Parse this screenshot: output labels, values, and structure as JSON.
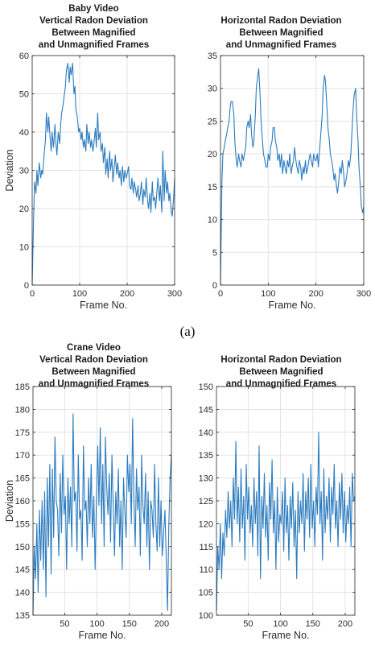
{
  "caption": "(a)",
  "chart_data": [
    {
      "type": "line",
      "title_lines": [
        "Baby Video",
        "Vertical Radon Deviation",
        "Between Magnified",
        "and Unmagnified Frames"
      ],
      "xlabel": "Frame No.",
      "ylabel": "Deviation",
      "xlim": [
        0,
        300
      ],
      "ylim": [
        0,
        60
      ],
      "xticks": [
        0,
        100,
        200,
        300
      ],
      "yticks": [
        0,
        10,
        20,
        30,
        40,
        50,
        60
      ],
      "grid": true,
      "color": "#2b7bbf",
      "series": [
        {
          "name": "",
          "x": [
            0,
            3,
            5,
            8,
            10,
            12,
            15,
            18,
            20,
            22,
            25,
            28,
            30,
            33,
            35,
            38,
            40,
            42,
            45,
            48,
            50,
            52,
            55,
            58,
            60,
            62,
            65,
            68,
            70,
            72,
            75,
            78,
            80,
            82,
            85,
            88,
            90,
            92,
            95,
            98,
            100,
            103,
            105,
            108,
            110,
            113,
            115,
            118,
            120,
            123,
            125,
            128,
            130,
            133,
            135,
            138,
            140,
            143,
            145,
            148,
            150,
            153,
            155,
            158,
            160,
            163,
            165,
            168,
            170,
            173,
            175,
            178,
            180,
            183,
            185,
            188,
            190,
            193,
            195,
            198,
            200,
            203,
            205,
            208,
            210,
            213,
            215,
            218,
            220,
            223,
            225,
            228,
            230,
            233,
            235,
            238,
            240,
            243,
            245,
            248,
            250,
            253,
            255,
            258,
            260,
            263,
            265,
            268,
            270,
            273,
            275,
            278,
            280,
            283,
            285,
            288,
            290,
            293,
            295,
            298,
            300
          ],
          "y": [
            0,
            18,
            27,
            24,
            30,
            26,
            32,
            28,
            30,
            29,
            34,
            38,
            45,
            40,
            44,
            38,
            35,
            40,
            36,
            42,
            37,
            34,
            40,
            37,
            42,
            45,
            47,
            50,
            52,
            56,
            58,
            53,
            57,
            55,
            58,
            50,
            52,
            46,
            44,
            40,
            41,
            38,
            40,
            36,
            38,
            35,
            42,
            37,
            40,
            36,
            38,
            35,
            37,
            41,
            36,
            45,
            38,
            40,
            35,
            37,
            32,
            36,
            29,
            33,
            28,
            35,
            30,
            33,
            27,
            31,
            34,
            29,
            32,
            28,
            30,
            26,
            31,
            27,
            30,
            28,
            29,
            31,
            26,
            25,
            28,
            24,
            27,
            25,
            23,
            26,
            22,
            24,
            27,
            21,
            25,
            23,
            28,
            22,
            20,
            24,
            19,
            27,
            22,
            23,
            20,
            25,
            28,
            22,
            26,
            19,
            35,
            22,
            30,
            24,
            27,
            22,
            24,
            19,
            18,
            23,
            28
          ]
        }
      ]
    },
    {
      "type": "line",
      "title_lines": [
        "Horizontal Radon Deviation",
        "Between Magnified",
        "and Unmagnified Frames"
      ],
      "xlabel": "Frame No.",
      "ylabel": "",
      "xlim": [
        0,
        300
      ],
      "ylim": [
        0,
        35
      ],
      "xticks": [
        0,
        100,
        200,
        300
      ],
      "yticks": [
        0,
        5,
        10,
        15,
        20,
        25,
        30,
        35
      ],
      "grid": true,
      "color": "#2b7bbf",
      "series": [
        {
          "name": "",
          "x": [
            0,
            3,
            5,
            8,
            10,
            13,
            15,
            18,
            20,
            22,
            25,
            28,
            30,
            33,
            35,
            38,
            40,
            43,
            45,
            48,
            50,
            53,
            55,
            58,
            60,
            63,
            65,
            68,
            70,
            73,
            75,
            78,
            80,
            83,
            85,
            88,
            90,
            93,
            95,
            98,
            100,
            103,
            105,
            108,
            110,
            113,
            115,
            118,
            120,
            123,
            125,
            128,
            130,
            133,
            135,
            138,
            140,
            143,
            145,
            148,
            150,
            153,
            155,
            158,
            160,
            163,
            165,
            168,
            170,
            173,
            175,
            178,
            180,
            183,
            185,
            188,
            190,
            193,
            195,
            198,
            200,
            203,
            205,
            208,
            210,
            213,
            215,
            218,
            220,
            223,
            225,
            228,
            230,
            233,
            235,
            238,
            240,
            243,
            245,
            248,
            250,
            253,
            255,
            258,
            260,
            263,
            265,
            268,
            270,
            273,
            275,
            278,
            280,
            283,
            285,
            288,
            290,
            293,
            295,
            298,
            300
          ],
          "y": [
            0,
            16,
            20,
            21,
            22,
            23,
            24,
            25,
            27,
            28,
            28,
            26,
            22,
            19,
            18,
            20,
            19,
            18,
            20,
            19,
            20,
            21,
            24,
            25,
            24,
            26,
            23,
            21,
            22,
            26,
            30,
            32,
            33,
            29,
            25,
            22,
            20,
            19,
            18,
            18,
            20,
            19,
            21,
            22,
            24,
            24,
            22,
            21,
            19,
            20,
            18,
            20,
            17,
            19,
            18,
            17,
            19,
            18,
            20,
            17,
            18,
            19,
            21,
            19,
            18,
            17,
            19,
            18,
            16,
            18,
            17,
            19,
            17,
            18,
            19,
            20,
            19,
            18,
            20,
            19,
            19,
            20,
            18,
            21,
            23,
            26,
            30,
            32,
            31,
            27,
            24,
            22,
            20,
            19,
            18,
            16,
            17,
            15,
            14,
            16,
            18,
            17,
            19,
            17,
            15,
            16,
            17,
            19,
            18,
            20,
            23,
            27,
            29,
            30,
            26,
            22,
            18,
            15,
            12,
            11,
            12
          ]
        }
      ]
    },
    {
      "type": "line",
      "title_lines": [
        "Crane Video",
        "Vertical Radon Deviation",
        "Between Magnified",
        "and Unmagnified Frames"
      ],
      "xlabel": "Frame No.",
      "ylabel": "Deviation",
      "xlim": [
        1,
        215
      ],
      "ylim": [
        135,
        185
      ],
      "xticks": [
        50,
        100,
        150,
        200
      ],
      "yticks": [
        135,
        140,
        145,
        150,
        155,
        160,
        165,
        170,
        175,
        180,
        185
      ],
      "grid": true,
      "color": "#2b7bbf",
      "series": [
        {
          "name": "",
          "x": [
            1,
            3,
            5,
            7,
            9,
            11,
            13,
            15,
            17,
            19,
            21,
            23,
            25,
            27,
            29,
            31,
            33,
            35,
            37,
            39,
            41,
            43,
            45,
            47,
            49,
            51,
            53,
            55,
            57,
            59,
            61,
            63,
            65,
            67,
            69,
            71,
            73,
            75,
            77,
            79,
            81,
            83,
            85,
            87,
            89,
            91,
            93,
            95,
            97,
            99,
            101,
            103,
            105,
            107,
            109,
            111,
            113,
            115,
            117,
            119,
            121,
            123,
            125,
            127,
            129,
            131,
            133,
            135,
            137,
            139,
            141,
            143,
            145,
            147,
            149,
            151,
            153,
            155,
            157,
            159,
            161,
            163,
            165,
            167,
            169,
            171,
            173,
            175,
            177,
            179,
            181,
            183,
            185,
            187,
            189,
            191,
            193,
            195,
            197,
            199,
            201,
            203,
            205,
            207,
            209,
            211,
            213,
            215
          ],
          "y": [
            135,
            150,
            143,
            155,
            140,
            158,
            147,
            160,
            145,
            162,
            139,
            165,
            150,
            168,
            144,
            167,
            152,
            174,
            160,
            158,
            148,
            166,
            153,
            170,
            157,
            161,
            145,
            165,
            155,
            163,
            150,
            179,
            160,
            162,
            149,
            170,
            156,
            158,
            147,
            172,
            158,
            160,
            150,
            165,
            155,
            168,
            152,
            161,
            145,
            160,
            172,
            159,
            176,
            155,
            168,
            150,
            174,
            163,
            157,
            166,
            151,
            170,
            159,
            148,
            162,
            155,
            167,
            150,
            160,
            145,
            165,
            158,
            152,
            170,
            162,
            168,
            155,
            178,
            160,
            150,
            167,
            158,
            163,
            148,
            170,
            159,
            155,
            166,
            150,
            162,
            145,
            160,
            158,
            152,
            168,
            155,
            149,
            165,
            150,
            160,
            148,
            153,
            158,
            147,
            136,
            155,
            165,
            170
          ]
        }
      ]
    },
    {
      "type": "line",
      "title_lines": [
        "Horizontal Radon Deviation",
        "Between Magnified",
        "and Unmagnified Frames"
      ],
      "xlabel": "Frame No.",
      "ylabel": "",
      "xlim": [
        1,
        215
      ],
      "ylim": [
        100,
        150
      ],
      "xticks": [
        50,
        100,
        150,
        200
      ],
      "yticks": [
        100,
        105,
        110,
        115,
        120,
        125,
        130,
        135,
        140,
        145,
        150
      ],
      "grid": true,
      "color": "#2b7bbf",
      "series": [
        {
          "name": "",
          "x": [
            1,
            3,
            5,
            7,
            9,
            11,
            13,
            15,
            17,
            19,
            21,
            23,
            25,
            27,
            29,
            31,
            33,
            35,
            37,
            39,
            41,
            43,
            45,
            47,
            49,
            51,
            53,
            55,
            57,
            59,
            61,
            63,
            65,
            67,
            69,
            71,
            73,
            75,
            77,
            79,
            81,
            83,
            85,
            87,
            89,
            91,
            93,
            95,
            97,
            99,
            101,
            103,
            105,
            107,
            109,
            111,
            113,
            115,
            117,
            119,
            121,
            123,
            125,
            127,
            129,
            131,
            133,
            135,
            137,
            139,
            141,
            143,
            145,
            147,
            149,
            151,
            153,
            155,
            157,
            159,
            161,
            163,
            165,
            167,
            169,
            171,
            173,
            175,
            177,
            179,
            181,
            183,
            185,
            187,
            189,
            191,
            193,
            195,
            197,
            199,
            201,
            203,
            205,
            207,
            209,
            211,
            213,
            215
          ],
          "y": [
            101,
            115,
            110,
            120,
            108,
            118,
            113,
            123,
            117,
            127,
            119,
            125,
            115,
            130,
            121,
            138,
            120,
            128,
            116,
            132,
            119,
            126,
            112,
            133,
            121,
            128,
            118,
            124,
            115,
            130,
            120,
            127,
            113,
            137,
            108,
            126,
            119,
            131,
            117,
            124,
            112,
            129,
            121,
            134,
            118,
            125,
            110,
            128,
            116,
            122,
            120,
            127,
            114,
            130,
            118,
            124,
            112,
            126,
            119,
            129,
            115,
            123,
            108,
            127,
            118,
            125,
            120,
            131,
            114,
            127,
            121,
            130,
            117,
            133,
            119,
            125,
            115,
            128,
            122,
            140,
            120,
            127,
            112,
            132,
            118,
            126,
            121,
            130,
            116,
            128,
            122,
            133,
            119,
            125,
            115,
            129,
            121,
            131,
            118,
            127,
            116,
            124,
            120,
            128,
            115,
            131,
            125,
            126
          ]
        }
      ]
    }
  ]
}
